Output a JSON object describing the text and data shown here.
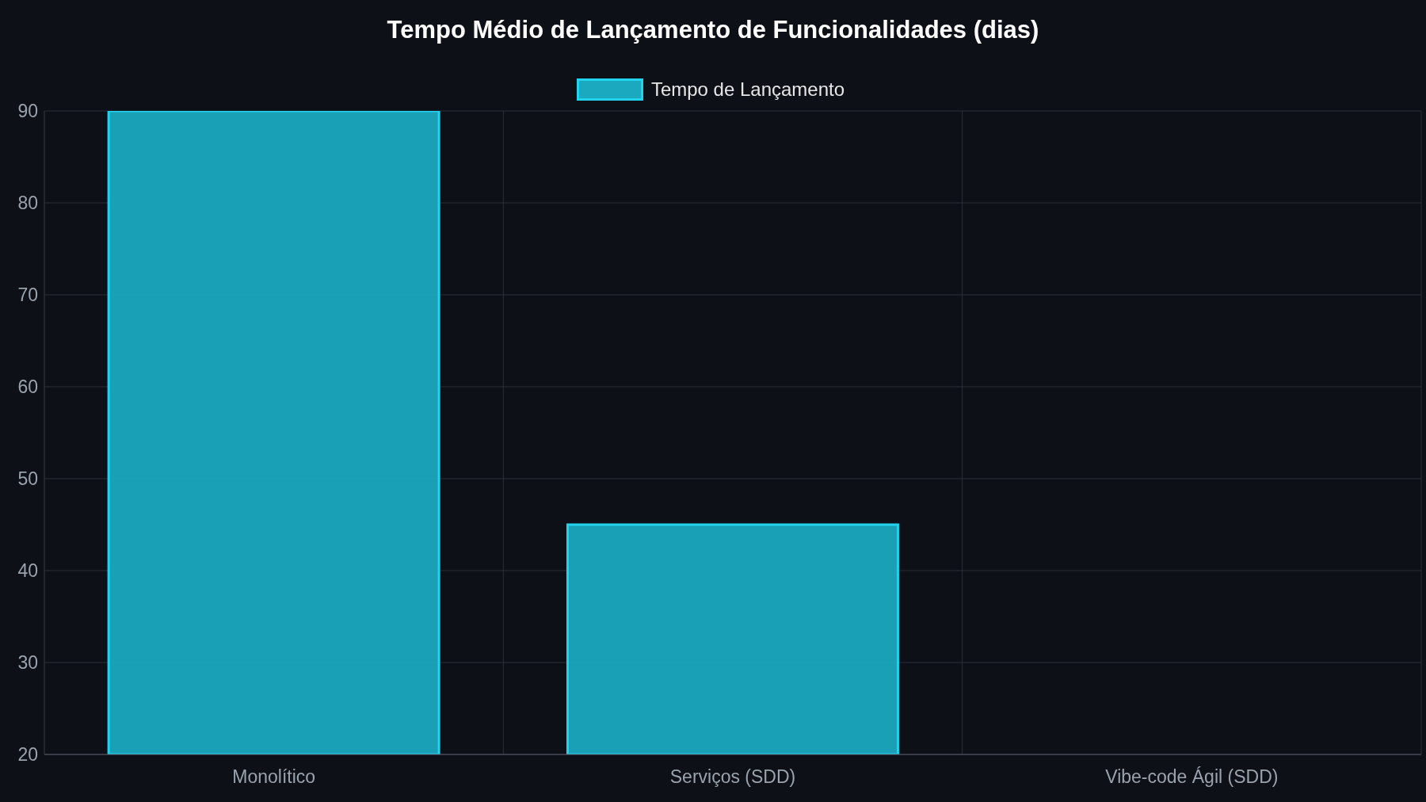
{
  "chart_data": {
    "type": "bar",
    "title": "Tempo Médio de Lançamento de Funcionalidades (dias)",
    "categories": [
      "Monolítico",
      "Serviços (SDD)",
      "Vibe-code Ágil (SDD)"
    ],
    "series": [
      {
        "name": "Tempo de Lançamento",
        "color": "#1ba9bf",
        "values": [
          90,
          45,
          null
        ]
      }
    ],
    "ylim": [
      20,
      90
    ],
    "yticks": [
      20,
      30,
      40,
      50,
      60,
      70,
      80,
      90
    ],
    "grid": true,
    "legend": "top"
  }
}
